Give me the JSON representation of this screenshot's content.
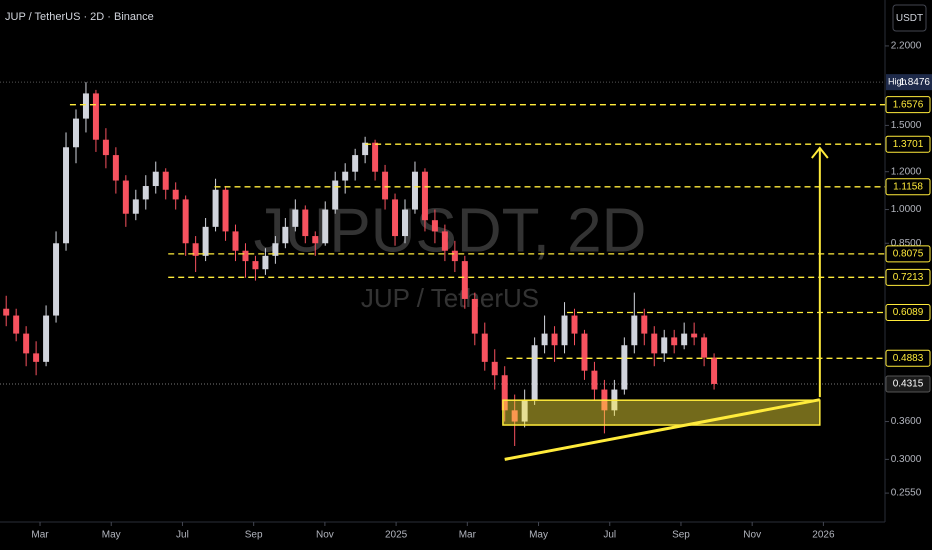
{
  "chart_data": {
    "type": "candlestick",
    "title": "JUP / TetherUS · 2D · Binance",
    "watermark": "JUPUSDT, 2D",
    "watermark_subtitle": "JUP / TetherUS",
    "currency": "USDT",
    "log_scale": true,
    "up_color": "#d1d4dc",
    "down_color": "#f7525f",
    "x": [
      1.05,
      1.33,
      1.61,
      1.89,
      2.17,
      2.45,
      2.73,
      3.01,
      3.29,
      3.57,
      3.85,
      4.13,
      4.41,
      4.69,
      4.97,
      5.25,
      5.53,
      5.81,
      6.09,
      6.37,
      6.65,
      6.93,
      7.21,
      7.49,
      7.77,
      8.05,
      8.33,
      8.61,
      8.89,
      9.17,
      9.45,
      9.73,
      10.01,
      10.29,
      10.57,
      10.85,
      11.13,
      11.41,
      11.69,
      11.97,
      12.25,
      12.53,
      12.81,
      13.09,
      13.37,
      13.65,
      13.93,
      14.21,
      14.49,
      14.77,
      15.05,
      15.33,
      15.61,
      15.89,
      16.17,
      16.45,
      16.73,
      17.01,
      17.29,
      17.57,
      17.85,
      18.13,
      18.41,
      18.69,
      18.97,
      19.25,
      19.53,
      19.81,
      20.09,
      20.37,
      20.65,
      20.93
    ],
    "open": [
      0.62,
      0.6,
      0.55,
      0.5,
      0.48,
      0.6,
      0.85,
      1.35,
      1.55,
      1.75,
      1.4,
      1.3,
      1.15,
      0.98,
      1.05,
      1.12,
      1.2,
      1.1,
      1.05,
      0.85,
      0.8,
      0.92,
      1.1,
      0.9,
      0.82,
      0.78,
      0.75,
      0.8,
      0.85,
      0.92,
      1.0,
      0.88,
      0.85,
      1.0,
      1.15,
      1.2,
      1.3,
      1.38,
      1.2,
      1.05,
      0.88,
      1.0,
      1.2,
      0.95,
      0.9,
      0.82,
      0.78,
      0.65,
      0.55,
      0.48,
      0.45,
      0.38,
      0.36,
      0.4,
      0.52,
      0.55,
      0.52,
      0.6,
      0.55,
      0.46,
      0.42,
      0.38,
      0.42,
      0.52,
      0.6,
      0.55,
      0.5,
      0.54,
      0.52,
      0.55,
      0.54,
      0.49
    ],
    "high": [
      0.66,
      0.62,
      0.57,
      0.53,
      0.63,
      0.9,
      1.45,
      1.62,
      1.8476,
      1.78,
      1.48,
      1.35,
      1.18,
      1.1,
      1.18,
      1.26,
      1.22,
      1.14,
      1.07,
      0.88,
      0.96,
      1.16,
      1.12,
      0.93,
      0.85,
      0.8,
      0.83,
      0.88,
      0.96,
      1.05,
      1.02,
      0.9,
      1.04,
      1.2,
      1.25,
      1.34,
      1.42,
      1.4,
      1.24,
      1.08,
      1.05,
      1.26,
      1.22,
      1.0,
      0.93,
      0.86,
      0.8,
      0.67,
      0.58,
      0.51,
      0.47,
      0.41,
      0.42,
      0.54,
      0.6,
      0.57,
      0.64,
      0.62,
      0.56,
      0.48,
      0.44,
      0.44,
      0.54,
      0.67,
      0.62,
      0.57,
      0.56,
      0.56,
      0.58,
      0.58,
      0.55,
      0.5
    ],
    "low": [
      0.57,
      0.53,
      0.47,
      0.45,
      0.47,
      0.58,
      0.82,
      1.25,
      1.45,
      1.32,
      1.22,
      1.08,
      0.92,
      0.95,
      1.0,
      1.08,
      1.05,
      1.0,
      0.8,
      0.74,
      0.78,
      0.9,
      0.86,
      0.78,
      0.72,
      0.71,
      0.73,
      0.77,
      0.83,
      0.9,
      0.85,
      0.8,
      0.84,
      0.98,
      1.08,
      1.15,
      1.25,
      1.15,
      1.0,
      0.84,
      0.85,
      0.98,
      0.9,
      0.85,
      0.78,
      0.74,
      0.62,
      0.52,
      0.46,
      0.42,
      0.36,
      0.32,
      0.35,
      0.39,
      0.5,
      0.48,
      0.5,
      0.52,
      0.44,
      0.4,
      0.34,
      0.37,
      0.41,
      0.5,
      0.52,
      0.47,
      0.48,
      0.5,
      0.51,
      0.52,
      0.47,
      0.42
    ],
    "close": [
      0.6,
      0.55,
      0.5,
      0.48,
      0.6,
      0.85,
      1.35,
      1.55,
      1.75,
      1.4,
      1.3,
      1.15,
      0.98,
      1.05,
      1.12,
      1.2,
      1.1,
      1.05,
      0.85,
      0.8,
      0.92,
      1.1,
      0.9,
      0.82,
      0.78,
      0.75,
      0.8,
      0.85,
      0.92,
      1.0,
      0.88,
      0.85,
      1.0,
      1.15,
      1.2,
      1.3,
      1.38,
      1.2,
      1.05,
      0.88,
      1.0,
      1.2,
      0.95,
      0.9,
      0.82,
      0.78,
      0.65,
      0.55,
      0.48,
      0.45,
      0.38,
      0.36,
      0.4,
      0.52,
      0.55,
      0.52,
      0.6,
      0.55,
      0.46,
      0.42,
      0.38,
      0.42,
      0.52,
      0.6,
      0.55,
      0.5,
      0.54,
      0.52,
      0.55,
      0.54,
      0.49,
      0.4315
    ],
    "xlim": [
      0.876,
      25.73
    ],
    "xticks": [
      {
        "value": 2,
        "label": "Mar"
      },
      {
        "value": 4,
        "label": "May"
      },
      {
        "value": 6,
        "label": "Jul"
      },
      {
        "value": 8,
        "label": "Sep"
      },
      {
        "value": 10,
        "label": "Nov"
      },
      {
        "value": 12,
        "label": "2025"
      },
      {
        "value": 14,
        "label": "Mar"
      },
      {
        "value": 16,
        "label": "May"
      },
      {
        "value": 18,
        "label": "Jul"
      },
      {
        "value": 20,
        "label": "Sep"
      },
      {
        "value": 22,
        "label": "Nov"
      },
      {
        "value": 24,
        "label": "2026"
      }
    ],
    "ylim": [
      0.224,
      2.745
    ],
    "yticks": [
      {
        "value": 2.2,
        "label": "2.2000"
      },
      {
        "value": 1.5,
        "label": "1.5000"
      },
      {
        "value": 1.2,
        "label": "1.2000"
      },
      {
        "value": 1,
        "label": "1.0000"
      },
      {
        "value": 0.85,
        "label": "0.8500"
      },
      {
        "value": 0.36,
        "label": "0.3600"
      },
      {
        "value": 0.3,
        "label": "0.3000"
      },
      {
        "value": 0.255,
        "label": "0.2550"
      }
    ],
    "high_label": "High",
    "high_value": 1.8476,
    "last_price": 0.4315,
    "levels": [
      1.6576,
      1.3701,
      1.1158,
      0.8075,
      0.7213,
      0.6089,
      0.4883
    ],
    "level_start_x": [
      2.84,
      11.13,
      6.9,
      5.6,
      5.6,
      16.8,
      15.1
    ],
    "level_color": "#ffeb3b",
    "zone_x": [
      15.0,
      23.9
    ],
    "zone_y": [
      0.354,
      0.399
    ],
    "trendline_x": [
      15.05,
      23.9
    ],
    "trendline_y": [
      0.3,
      0.4
    ],
    "arrow_x": 23.9,
    "arrow_y": [
      0.405,
      1.345
    ]
  }
}
